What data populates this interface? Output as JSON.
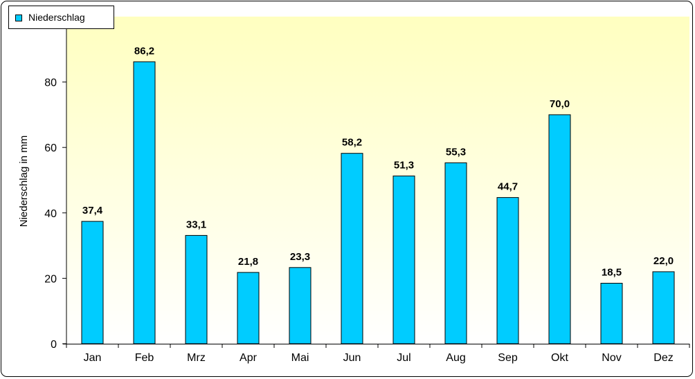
{
  "chart_data": {
    "type": "bar",
    "categories": [
      "Jan",
      "Feb",
      "Mrz",
      "Apr",
      "Mai",
      "Jun",
      "Jul",
      "Aug",
      "Sep",
      "Okt",
      "Nov",
      "Dez"
    ],
    "series": [
      {
        "name": "Niederschlag",
        "values": [
          37.4,
          86.2,
          33.1,
          21.8,
          23.3,
          58.2,
          51.3,
          55.3,
          44.7,
          70.0,
          18.5,
          22.0
        ],
        "labels": [
          "37,4",
          "86,2",
          "33,1",
          "21,8",
          "23,3",
          "58,2",
          "51,3",
          "55,3",
          "44,7",
          "70,0",
          "18,5",
          "22,0"
        ],
        "color": "#00ccff"
      }
    ],
    "ylabel": "Niederschlag in mm",
    "ylim": [
      0,
      100
    ],
    "yticks": [
      0,
      20,
      40,
      60,
      80
    ],
    "grid": false,
    "legend": "top-left",
    "plot_background": [
      "#ffffc0",
      "#ffffff"
    ]
  }
}
